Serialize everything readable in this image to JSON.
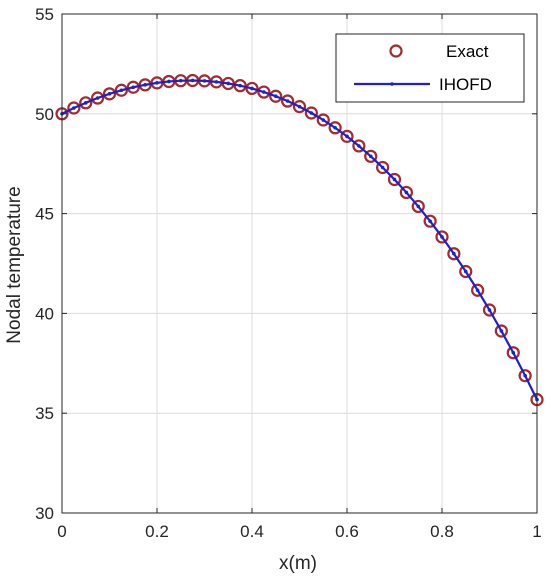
{
  "chart_data": {
    "type": "line",
    "title": "",
    "xlabel": "x(m)",
    "ylabel": "Nodal temperature",
    "xlim": [
      0,
      1
    ],
    "ylim": [
      30,
      55
    ],
    "xticks": [
      0,
      0.2,
      0.4,
      0.6,
      0.8,
      1
    ],
    "xtick_labels": [
      "0",
      "0.2",
      "0.4",
      "0.6",
      "0.8",
      "1"
    ],
    "yticks": [
      30,
      35,
      40,
      45,
      50,
      55
    ],
    "ytick_labels": [
      "30",
      "35",
      "40",
      "45",
      "50",
      "55"
    ],
    "grid": true,
    "legend_position": "top-right",
    "x": [
      0,
      0.025,
      0.05,
      0.075,
      0.1,
      0.125,
      0.15,
      0.175,
      0.2,
      0.225,
      0.25,
      0.275,
      0.3,
      0.325,
      0.35,
      0.375,
      0.4,
      0.425,
      0.45,
      0.475,
      0.5,
      0.525,
      0.55,
      0.575,
      0.6,
      0.625,
      0.65,
      0.675,
      0.7,
      0.725,
      0.75,
      0.775,
      0.8,
      0.825,
      0.85,
      0.875,
      0.9,
      0.925,
      0.95,
      0.975,
      1
    ],
    "series": [
      {
        "name": "Exact",
        "style": "markers",
        "marker": "circle",
        "color": "#a52a2a",
        "values": [
          50.0,
          50.29,
          50.55,
          50.79,
          51.0,
          51.18,
          51.33,
          51.45,
          51.55,
          51.62,
          51.66,
          51.67,
          51.65,
          51.6,
          51.52,
          51.41,
          51.27,
          51.09,
          50.88,
          50.64,
          50.36,
          50.04,
          49.69,
          49.3,
          48.87,
          48.39,
          47.87,
          47.31,
          46.71,
          46.06,
          45.36,
          44.62,
          43.83,
          42.99,
          42.1,
          41.16,
          40.17,
          39.12,
          38.03,
          36.88,
          35.68
        ]
      },
      {
        "name": "IHOFD",
        "style": "line-dot",
        "color": "#1f1fcf",
        "values": [
          50.0,
          50.29,
          50.55,
          50.79,
          51.0,
          51.18,
          51.33,
          51.45,
          51.55,
          51.62,
          51.66,
          51.67,
          51.65,
          51.6,
          51.52,
          51.41,
          51.27,
          51.09,
          50.88,
          50.64,
          50.36,
          50.04,
          49.69,
          49.3,
          48.87,
          48.39,
          47.87,
          47.31,
          46.71,
          46.06,
          45.36,
          44.62,
          43.83,
          42.99,
          42.1,
          41.16,
          40.17,
          39.12,
          38.03,
          36.88,
          35.68
        ]
      }
    ]
  }
}
